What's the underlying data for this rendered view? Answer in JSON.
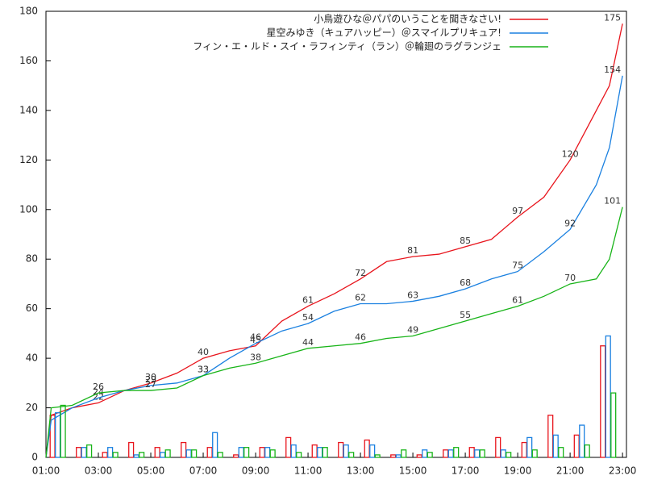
{
  "chart_data": {
    "type": "line",
    "x": [
      1,
      1.2,
      2,
      3,
      4,
      5,
      6,
      7,
      8,
      9,
      10,
      11,
      12,
      13,
      14,
      15,
      16,
      17,
      18,
      19,
      20,
      21,
      22,
      22.5,
      23
    ],
    "bar_x": [
      1,
      2,
      3,
      4,
      5,
      6,
      7,
      8,
      9,
      10,
      11,
      12,
      13,
      14,
      15,
      16,
      17,
      18,
      19,
      20,
      21,
      22
    ],
    "series": [
      {
        "name": "小鳥遊ひな＠パパのいうことを聞きなさい!",
        "color": "#e8141c",
        "values": [
          0,
          17,
          20,
          22,
          27,
          30,
          34,
          40,
          43,
          45,
          55,
          61,
          66,
          72,
          79,
          81,
          82,
          85,
          88,
          97,
          105,
          120,
          140,
          150,
          175
        ],
        "value_labels": [
          null,
          null,
          null,
          "22",
          null,
          "30",
          null,
          "40",
          null,
          "45",
          null,
          "61",
          null,
          "72",
          null,
          "81",
          null,
          "85",
          null,
          "97",
          null,
          "120",
          null,
          null,
          "175"
        ],
        "bars": [
          17,
          4,
          2,
          6,
          4,
          6,
          4,
          1,
          4,
          8,
          5,
          6,
          7,
          1,
          1,
          3,
          4,
          8,
          6,
          17,
          9,
          45
        ]
      },
      {
        "name": "星空みゆき（キュアハッピー）＠スマイルプリキュア!",
        "color": "#1a80e0",
        "values": [
          0,
          15,
          20,
          24,
          27,
          29,
          30,
          33,
          40,
          46,
          51,
          54,
          59,
          62,
          62,
          63,
          65,
          68,
          72,
          75,
          83,
          92,
          110,
          125,
          154
        ],
        "value_labels": [
          null,
          null,
          null,
          "24",
          null,
          "29",
          null,
          "33",
          null,
          "46",
          null,
          "54",
          null,
          "62",
          null,
          "63",
          null,
          "68",
          null,
          "75",
          null,
          "92",
          null,
          null,
          "154"
        ],
        "bars": [
          18,
          4,
          4,
          1,
          2,
          3,
          10,
          4,
          4,
          5,
          4,
          5,
          5,
          1,
          3,
          3,
          3,
          3,
          8,
          9,
          13,
          49
        ]
      },
      {
        "name": "フィン・エ・ルド・スイ・ラフィンティ（ラン）＠輪廻のラグランジェ",
        "color": "#18b418",
        "values": [
          0,
          20,
          21,
          26,
          27,
          27,
          28,
          33,
          36,
          38,
          41,
          44,
          45,
          46,
          48,
          49,
          52,
          55,
          58,
          61,
          65,
          70,
          72,
          80,
          101
        ],
        "value_labels": [
          null,
          null,
          null,
          "26",
          null,
          "27",
          null,
          "33",
          null,
          "38",
          null,
          "44",
          null,
          "46",
          null,
          "49",
          null,
          "55",
          null,
          "61",
          null,
          "70",
          null,
          null,
          "101"
        ],
        "bars": [
          21,
          5,
          2,
          2,
          3,
          3,
          2,
          4,
          3,
          2,
          4,
          2,
          1,
          3,
          2,
          4,
          3,
          2,
          3,
          4,
          5,
          26
        ]
      }
    ],
    "xlim": [
      1,
      23.15
    ],
    "xticks": [
      {
        "value": 1,
        "label": "01:00"
      },
      {
        "value": 3,
        "label": "03:00"
      },
      {
        "value": 5,
        "label": "05:00"
      },
      {
        "value": 7,
        "label": "07:00"
      },
      {
        "value": 9,
        "label": "09:00"
      },
      {
        "value": 11,
        "label": "11:00"
      },
      {
        "value": 13,
        "label": "13:00"
      },
      {
        "value": 15,
        "label": "15:00"
      },
      {
        "value": 17,
        "label": "17:00"
      },
      {
        "value": 19,
        "label": "19:00"
      },
      {
        "value": 21,
        "label": "21:00"
      },
      {
        "value": 23,
        "label": "23:00"
      }
    ],
    "ylim": [
      0,
      180
    ],
    "yticks": [
      0,
      20,
      40,
      60,
      80,
      100,
      120,
      140,
      160,
      180
    ],
    "legend": "top-right"
  }
}
